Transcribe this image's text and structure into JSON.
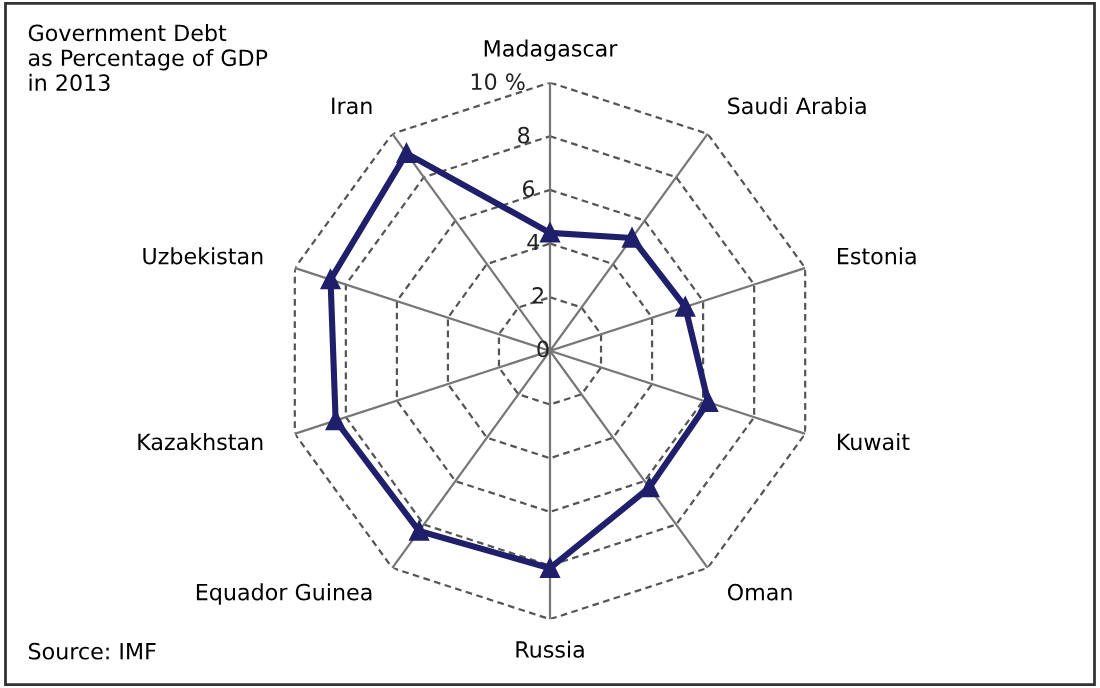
{
  "chart_data": {
    "type": "radar",
    "title": "Government Debt\nas Percentage of GDP\nin 2013",
    "categories": [
      "Madagascar",
      "Saudi Arabia",
      "Estonia",
      "Kuwait",
      "Oman",
      "Russia",
      "Equador Guinea",
      "Kazakhstan",
      "Uzbekistan",
      "Iran"
    ],
    "series": [
      {
        "color": "#1f1f6b",
        "values": [
          4.4,
          5.2,
          5.3,
          6.2,
          6.3,
          8.1,
          8.3,
          8.4,
          8.6,
          9.1
        ]
      }
    ],
    "ylim": [
      0,
      10
    ],
    "yticks": [
      0,
      2,
      4,
      6,
      8,
      {
        "value": 10,
        "label": "10 %"
      }
    ],
    "grid": true,
    "marker": "triangle",
    "line_style": "solid",
    "legend": false,
    "annotations": [
      "Source: IMF"
    ]
  }
}
